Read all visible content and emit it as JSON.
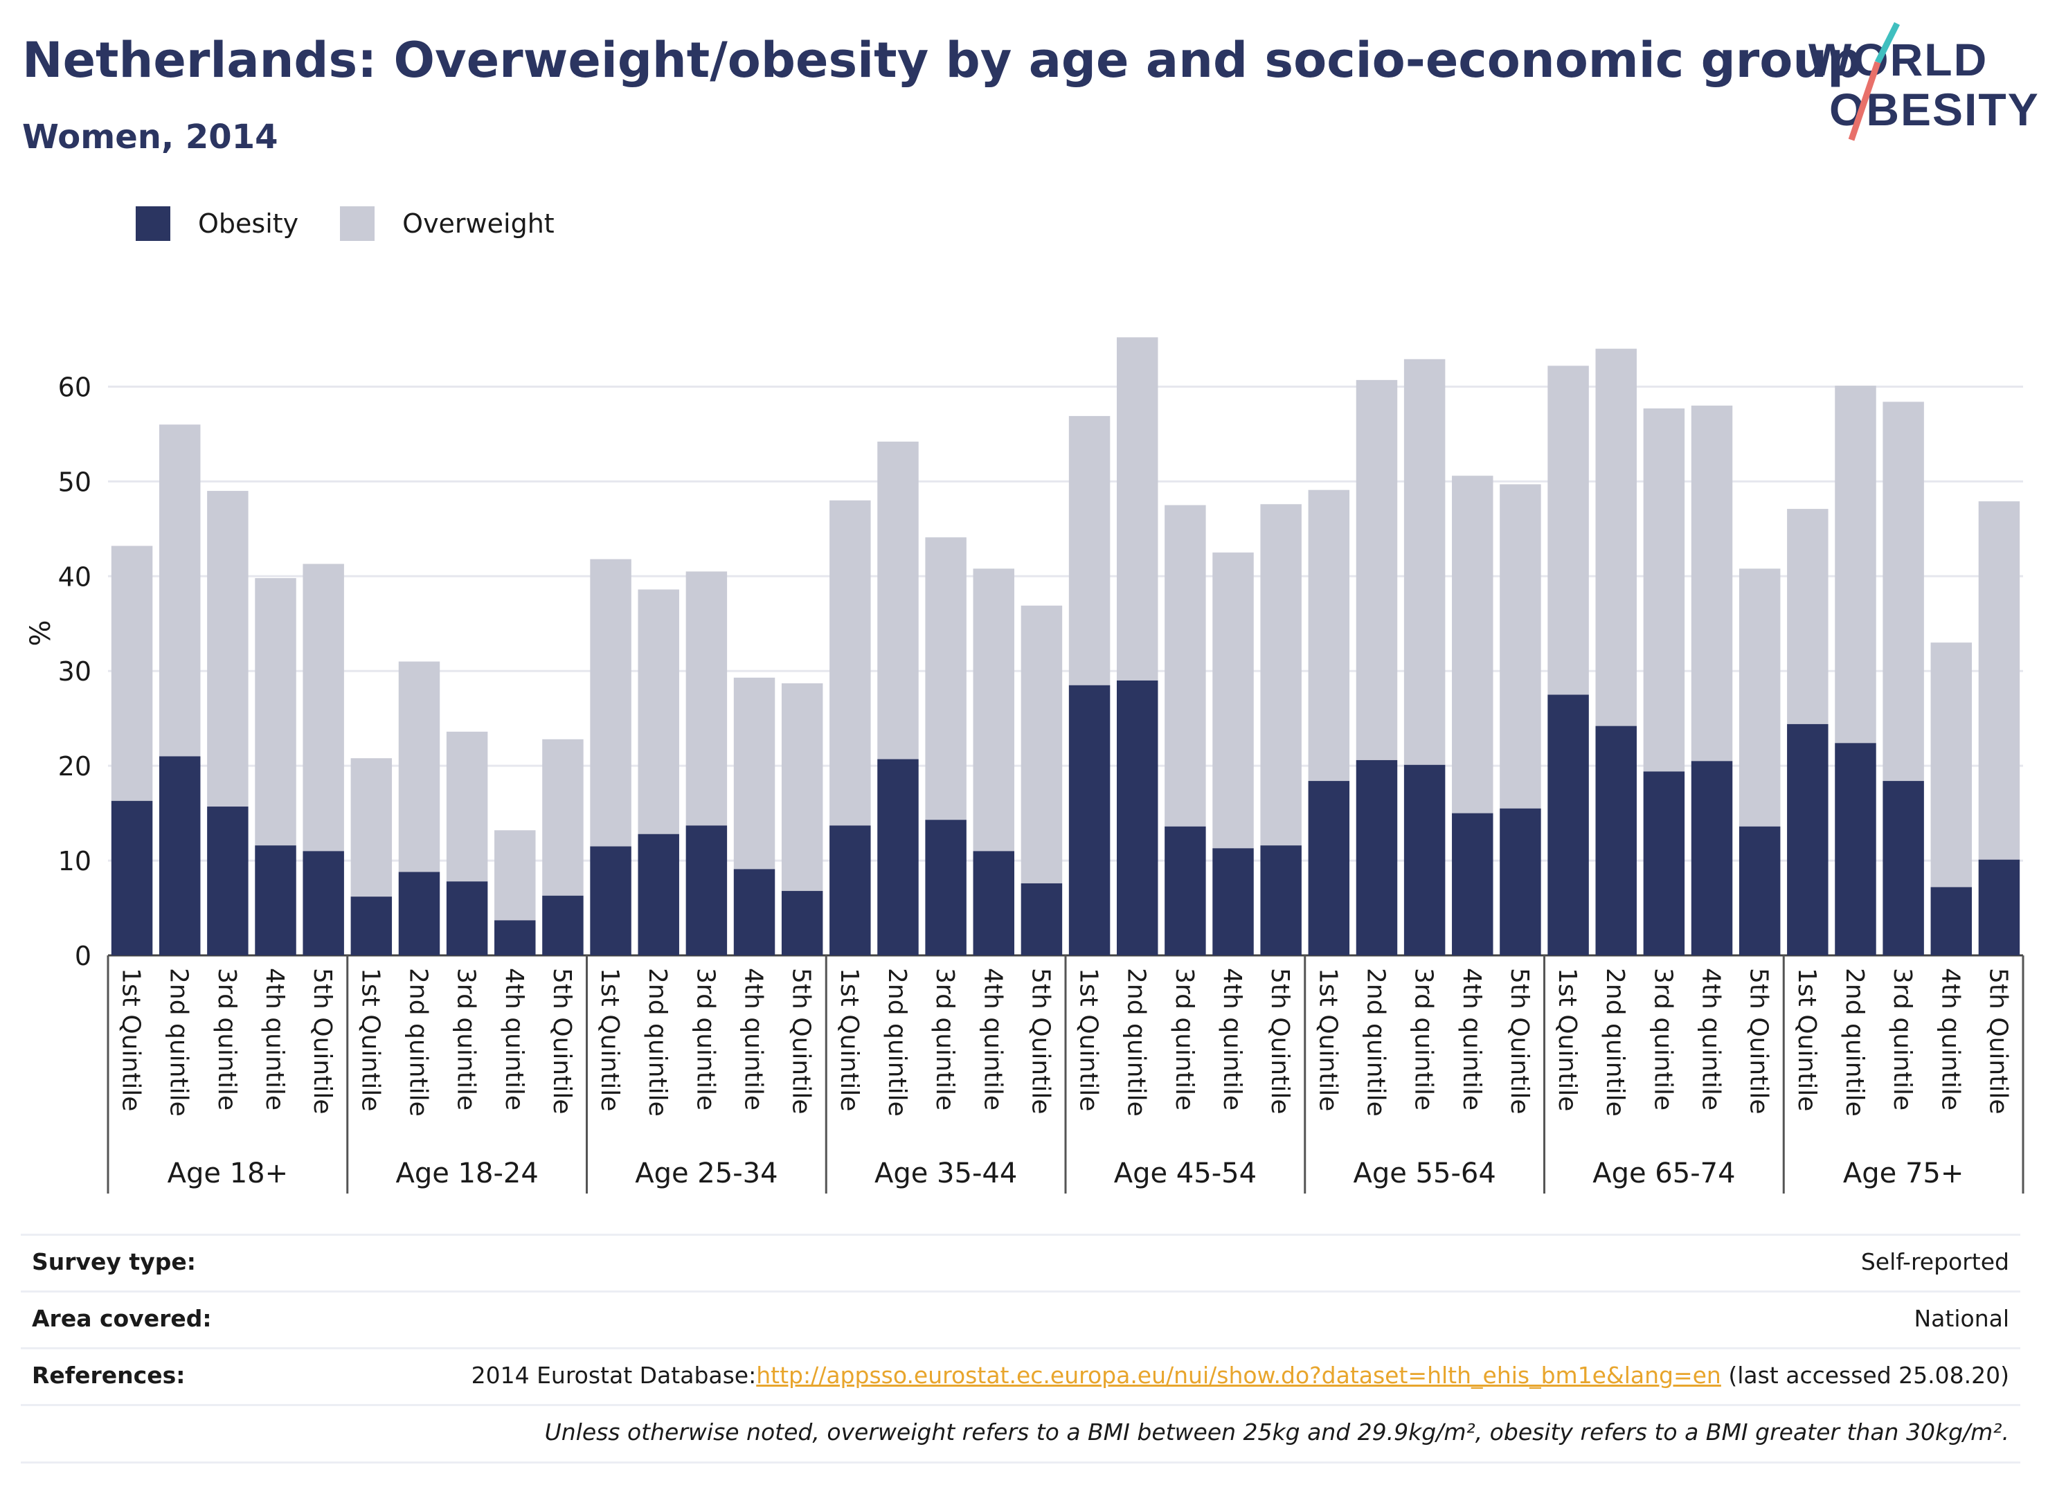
{
  "header": {
    "title": "Netherlands: Overweight/obesity by age and socio-economic group",
    "subtitle": "Women, 2014",
    "logo_line1": "WORLD",
    "logo_line2": "OBESITY"
  },
  "legend": {
    "obesity_label": "Obesity",
    "overweight_label": "Overweight"
  },
  "colors": {
    "obesity": "#2b3561",
    "overweight": "#c9cbd6",
    "title": "#2b3561",
    "link": "#e8a52c",
    "logo_slash_top": "#3fbfbf",
    "logo_slash_bottom": "#e8706a"
  },
  "chart_data": {
    "type": "bar",
    "stacked": true,
    "ylabel": "%",
    "ylim": [
      0,
      65
    ],
    "yticks": [
      0,
      10,
      20,
      30,
      40,
      50,
      60
    ],
    "grid": true,
    "legend_position": "top-left",
    "groups": [
      {
        "label": "Age 18+",
        "categories": [
          "1st Quintile",
          "2nd quintile",
          "3rd quintile",
          "4th quintile",
          "5th Quintile"
        ],
        "obesity": [
          16.3,
          21.0,
          15.7,
          11.6,
          11.0
        ],
        "total": [
          43.2,
          56.0,
          49.0,
          39.8,
          41.3
        ]
      },
      {
        "label": "Age 18-24",
        "categories": [
          "1st Quintile",
          "2nd quintile",
          "3rd quintile",
          "4th quintile",
          "5th Quintile"
        ],
        "obesity": [
          6.2,
          8.8,
          7.8,
          3.7,
          6.3
        ],
        "total": [
          20.8,
          31.0,
          23.6,
          13.2,
          22.8
        ]
      },
      {
        "label": "Age 25-34",
        "categories": [
          "1st Quintile",
          "2nd quintile",
          "3rd quintile",
          "4th quintile",
          "5th Quintile"
        ],
        "obesity": [
          11.5,
          12.8,
          13.7,
          9.1,
          6.8
        ],
        "total": [
          41.8,
          38.6,
          40.5,
          29.3,
          28.7
        ]
      },
      {
        "label": "Age 35-44",
        "categories": [
          "1st Quintile",
          "2nd quintile",
          "3rd quintile",
          "4th quintile",
          "5th Quintile"
        ],
        "obesity": [
          13.7,
          20.7,
          14.3,
          11.0,
          7.6
        ],
        "total": [
          48.0,
          54.2,
          44.1,
          40.8,
          36.9
        ]
      },
      {
        "label": "Age 45-54",
        "categories": [
          "1st Quintile",
          "2nd quintile",
          "3rd quintile",
          "4th quintile",
          "5th Quintile"
        ],
        "obesity": [
          28.5,
          29.0,
          13.6,
          11.3,
          11.6
        ],
        "total": [
          56.9,
          65.2,
          47.5,
          42.5,
          47.6
        ]
      },
      {
        "label": "Age 55-64",
        "categories": [
          "1st Quintile",
          "2nd quintile",
          "3rd quintile",
          "4th quintile",
          "5th Quintile"
        ],
        "obesity": [
          18.4,
          20.6,
          20.1,
          15.0,
          15.5
        ],
        "total": [
          49.1,
          60.7,
          62.9,
          50.6,
          49.7
        ]
      },
      {
        "label": "Age 65-74",
        "categories": [
          "1st Quintile",
          "2nd quintile",
          "3rd quintile",
          "4th quintile",
          "5th Quintile"
        ],
        "obesity": [
          27.5,
          24.2,
          19.4,
          20.5,
          13.6
        ],
        "total": [
          62.2,
          64.0,
          57.7,
          58.0,
          40.8
        ]
      },
      {
        "label": "Age 75+",
        "categories": [
          "1st Quintile",
          "2nd quintile",
          "3rd quintile",
          "4th quintile",
          "5th Quintile"
        ],
        "obesity": [
          24.4,
          22.4,
          18.4,
          7.2,
          10.1
        ],
        "total": [
          47.1,
          60.1,
          58.4,
          33.0,
          47.9
        ]
      }
    ]
  },
  "footer": {
    "survey_type_label": "Survey type:",
    "survey_type_value": "Self-reported",
    "area_label": "Area covered:",
    "area_value": "National",
    "references_label": "References:",
    "references_prefix": "2014 Eurostat Database:",
    "references_link": "http://appsso.eurostat.ec.europa.eu/nui/show.do?dataset=hlth_ehis_bm1e&lang=en",
    "references_suffix": " (last accessed 25.08.20)",
    "note": "Unless otherwise noted, overweight refers to a BMI between 25kg and 29.9kg/m², obesity refers to a BMI greater than 30kg/m²."
  }
}
